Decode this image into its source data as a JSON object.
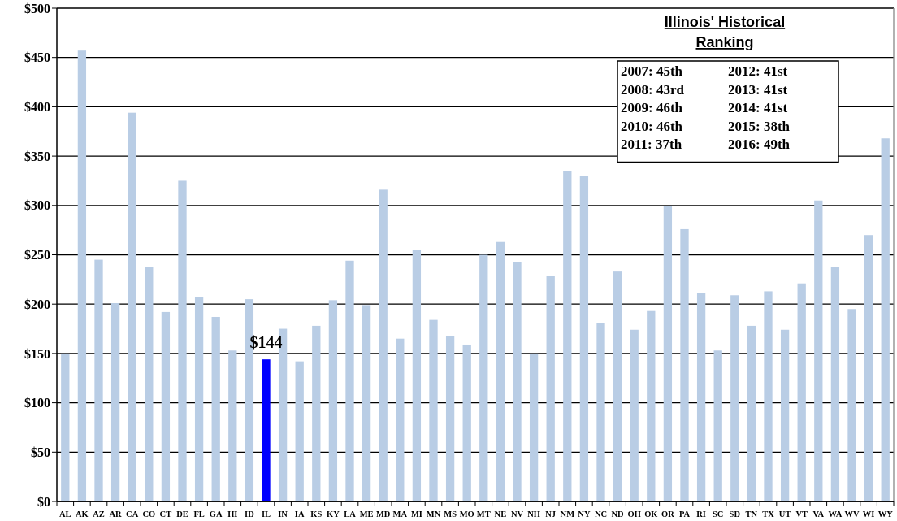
{
  "chart_data": {
    "type": "bar",
    "categories": [
      "AL",
      "AK",
      "AZ",
      "AR",
      "CA",
      "CO",
      "CT",
      "DE",
      "FL",
      "GA",
      "HI",
      "ID",
      "IL",
      "IN",
      "IA",
      "KS",
      "KY",
      "LA",
      "ME",
      "MD",
      "MA",
      "MI",
      "MN",
      "MS",
      "MO",
      "MT",
      "NE",
      "NV",
      "NH",
      "NJ",
      "NM",
      "NY",
      "NC",
      "ND",
      "OH",
      "OK",
      "OR",
      "PA",
      "RI",
      "SC",
      "SD",
      "TN",
      "TX",
      "UT",
      "VT",
      "VA",
      "WA",
      "WV",
      "WI",
      "WY"
    ],
    "values": [
      150,
      457,
      245,
      201,
      394,
      238,
      192,
      325,
      207,
      187,
      153,
      205,
      144,
      175,
      142,
      178,
      204,
      244,
      199,
      316,
      165,
      255,
      184,
      168,
      159,
      250,
      263,
      243,
      150,
      229,
      335,
      330,
      181,
      233,
      174,
      193,
      299,
      276,
      211,
      153,
      209,
      178,
      213,
      174,
      221,
      305,
      238,
      195,
      270,
      368
    ],
    "colors": [
      "#b9cde5",
      "#b9cde5",
      "#b9cde5",
      "#b9cde5",
      "#b9cde5",
      "#b9cde5",
      "#b9cde5",
      "#b9cde5",
      "#b9cde5",
      "#b9cde5",
      "#b9cde5",
      "#b9cde5",
      "#0000ff",
      "#b9cde5",
      "#b9cde5",
      "#b9cde5",
      "#b9cde5",
      "#b9cde5",
      "#b9cde5",
      "#b9cde5",
      "#b9cde5",
      "#b9cde5",
      "#b9cde5",
      "#b9cde5",
      "#b9cde5",
      "#b9cde5",
      "#b9cde5",
      "#b9cde5",
      "#b9cde5",
      "#b9cde5",
      "#b9cde5",
      "#b9cde5",
      "#b9cde5",
      "#b9cde5",
      "#b9cde5",
      "#b9cde5",
      "#b9cde5",
      "#b9cde5",
      "#b9cde5",
      "#b9cde5",
      "#b9cde5",
      "#b9cde5",
      "#b9cde5",
      "#b9cde5",
      "#b9cde5",
      "#b9cde5",
      "#b9cde5",
      "#b9cde5",
      "#b9cde5",
      "#b9cde5"
    ],
    "value_labels": [
      null,
      null,
      null,
      null,
      null,
      null,
      null,
      null,
      null,
      null,
      null,
      null,
      "$144",
      null,
      null,
      null,
      null,
      null,
      null,
      null,
      null,
      null,
      null,
      null,
      null,
      null,
      null,
      null,
      null,
      null,
      null,
      null,
      null,
      null,
      null,
      null,
      null,
      null,
      null,
      null,
      null,
      null,
      null,
      null,
      null,
      null,
      null,
      null,
      null,
      null
    ],
    "ylim": [
      0,
      500
    ],
    "yticks": [
      {
        "value": 0,
        "label": "$0"
      },
      {
        "value": 50,
        "label": "$50"
      },
      {
        "value": 100,
        "label": "$100"
      },
      {
        "value": 150,
        "label": "$150"
      },
      {
        "value": 200,
        "label": "$200"
      },
      {
        "value": 250,
        "label": "$250"
      },
      {
        "value": 300,
        "label": "$300"
      },
      {
        "value": 350,
        "label": "$350"
      },
      {
        "value": 400,
        "label": "$400"
      },
      {
        "value": 450,
        "label": "$450"
      },
      {
        "value": 500,
        "label": "$500"
      }
    ],
    "grid": "y",
    "annotations": [
      "Illinois' Historical Ranking",
      "2007: 45th",
      "2008: 43rd",
      "2009: 46th",
      "2010: 46th",
      "2011: 37th",
      "2012: 41st",
      "2013: 41st",
      "2014: 41st",
      "2015: 38th",
      "2016: 49th"
    ]
  }
}
